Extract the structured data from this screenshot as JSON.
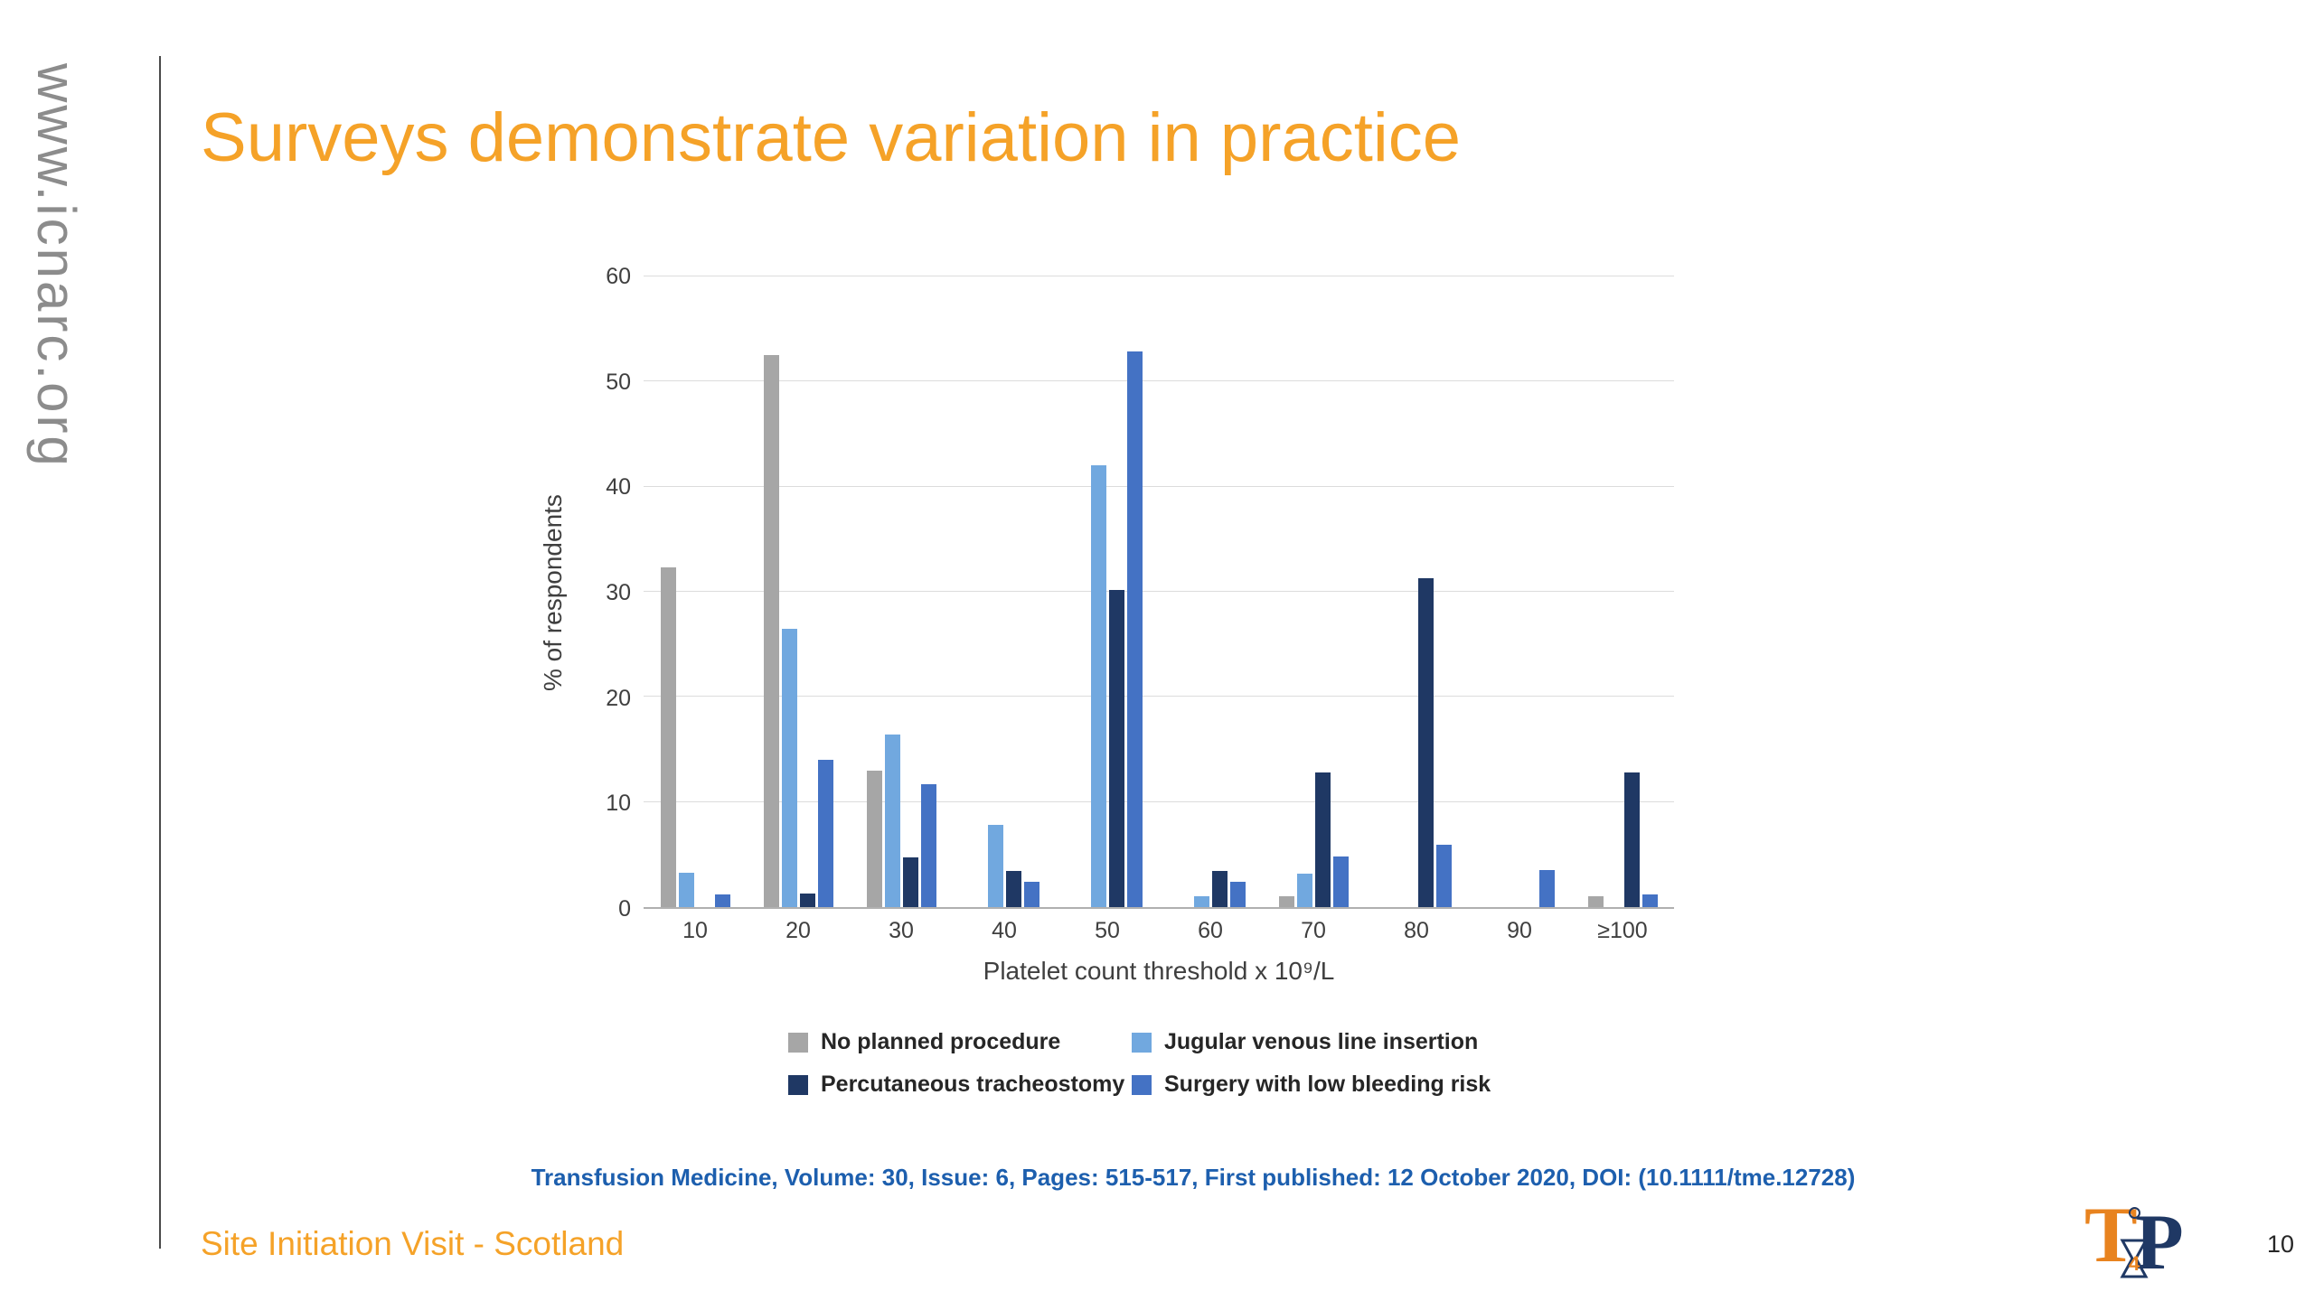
{
  "sidebar": {
    "url_text": "www.icnarc.org"
  },
  "slide": {
    "title": "Surveys demonstrate variation in practice",
    "citation": "Transfusion Medicine, Volume: 30, Issue: 6, Pages: 515-517, First published: 12 October 2020, DOI: (10.1111/tme.12728)",
    "footer": "Site Initiation Visit - Scotland",
    "page_number": "10"
  },
  "logo": {
    "t": "T",
    "four": "4",
    "p": "P"
  },
  "colors": {
    "title_orange": "#f5a228",
    "citation_blue": "#1d5fae",
    "url_gray": "#8c8c8c"
  },
  "chart_data": {
    "type": "bar",
    "title": "",
    "xlabel": "Platelet count threshold x 10⁹/L",
    "ylabel": "% of respondents",
    "ylim": [
      0,
      60
    ],
    "yticks": [
      0,
      10,
      20,
      30,
      40,
      50,
      60
    ],
    "grid": true,
    "legend_position": "bottom",
    "categories": [
      "10",
      "20",
      "30",
      "40",
      "50",
      "60",
      "70",
      "80",
      "90",
      "≥100"
    ],
    "series": [
      {
        "name": "No planned procedure",
        "color": "#a6a6a6",
        "values": [
          32.3,
          52.5,
          13.0,
          0,
          0,
          0,
          1.0,
          0,
          0,
          1.0
        ]
      },
      {
        "name": "Jugular venous line insertion",
        "color": "#71a8df",
        "values": [
          3.3,
          26.5,
          16.4,
          7.8,
          42.0,
          1.0,
          3.2,
          0,
          0,
          0
        ]
      },
      {
        "name": "Percutaneous tracheostomy",
        "color": "#1f3864",
        "values": [
          0,
          1.3,
          4.7,
          3.4,
          30.2,
          3.4,
          12.8,
          31.3,
          0,
          12.8
        ]
      },
      {
        "name": "Surgery with low bleeding risk",
        "color": "#4472c4",
        "values": [
          1.2,
          14.0,
          11.7,
          2.4,
          52.9,
          2.4,
          4.8,
          5.9,
          3.5,
          1.2
        ]
      }
    ]
  }
}
